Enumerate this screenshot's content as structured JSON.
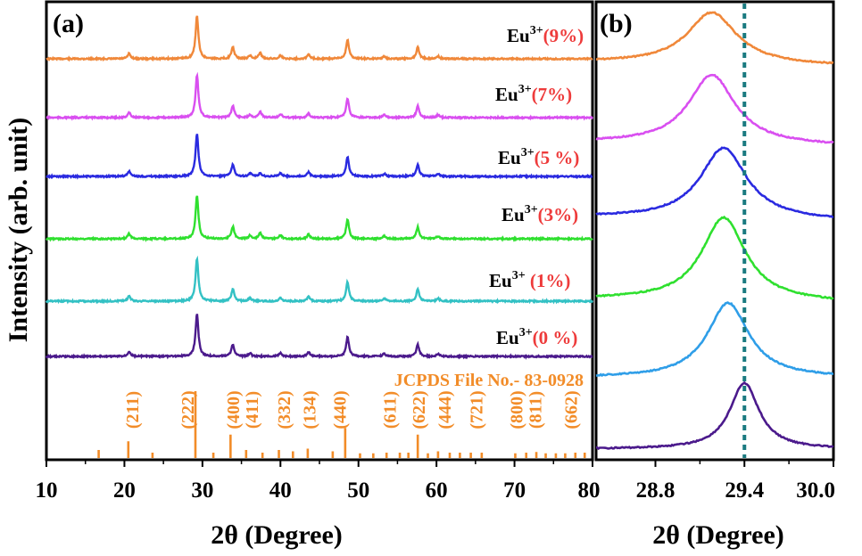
{
  "chart_data": [
    {
      "panel": "(a)",
      "type": "line",
      "xlabel": "2θ (Degree)",
      "ylabel": "Intensity (arb. unit)",
      "xlim": [
        10,
        80
      ],
      "xticks": [
        10,
        20,
        30,
        40,
        50,
        60,
        70,
        80
      ],
      "series": [
        {
          "name": "Eu3+(9%)",
          "doping": "Eu",
          "sup": "3+",
          "pct": "(9%)",
          "color": "#f0883a",
          "peaks": [
            [
              20.6,
              0.12
            ],
            [
              29.3,
              1.0
            ],
            [
              33.9,
              0.27
            ],
            [
              36.1,
              0.07
            ],
            [
              37.4,
              0.14
            ],
            [
              40.0,
              0.08
            ],
            [
              43.6,
              0.1
            ],
            [
              48.6,
              0.45
            ],
            [
              53.3,
              0.06
            ],
            [
              57.6,
              0.27
            ],
            [
              60.2,
              0.06
            ]
          ]
        },
        {
          "name": "Eu3+(7%)",
          "doping": "Eu",
          "sup": "3+",
          "pct": "(7%)",
          "color": "#d94ff0",
          "peaks": [
            [
              20.6,
              0.12
            ],
            [
              29.3,
              1.0
            ],
            [
              33.9,
              0.28
            ],
            [
              36.1,
              0.07
            ],
            [
              37.4,
              0.14
            ],
            [
              40.0,
              0.08
            ],
            [
              43.6,
              0.1
            ],
            [
              48.6,
              0.45
            ],
            [
              53.3,
              0.06
            ],
            [
              57.6,
              0.27
            ],
            [
              60.2,
              0.06
            ]
          ]
        },
        {
          "name": "Eu3+(5 %)",
          "doping": "Eu",
          "sup": "3+",
          "pct": "(5 %)",
          "color": "#2a2ae0",
          "peaks": [
            [
              20.6,
              0.12
            ],
            [
              29.3,
              1.0
            ],
            [
              33.9,
              0.28
            ],
            [
              36.1,
              0.07
            ],
            [
              37.4,
              0.07
            ],
            [
              40.0,
              0.08
            ],
            [
              43.6,
              0.1
            ],
            [
              48.6,
              0.45
            ],
            [
              53.3,
              0.06
            ],
            [
              57.6,
              0.27
            ],
            [
              60.2,
              0.06
            ]
          ]
        },
        {
          "name": "Eu3+(3%)",
          "doping": "Eu",
          "sup": "3+",
          "pct": "(3%)",
          "color": "#2fe02f",
          "peaks": [
            [
              20.6,
              0.12
            ],
            [
              29.3,
              1.0
            ],
            [
              33.9,
              0.28
            ],
            [
              36.1,
              0.07
            ],
            [
              37.4,
              0.14
            ],
            [
              40.0,
              0.08
            ],
            [
              43.6,
              0.1
            ],
            [
              48.6,
              0.45
            ],
            [
              53.3,
              0.06
            ],
            [
              57.6,
              0.27
            ],
            [
              60.2,
              0.06
            ]
          ]
        },
        {
          "name": "Eu3+ (1%)",
          "doping": "Eu",
          "sup": "3+",
          "pct": " (1%)",
          "color": "#33c1c4",
          "peaks": [
            [
              20.6,
              0.12
            ],
            [
              29.3,
              1.0
            ],
            [
              33.9,
              0.28
            ],
            [
              36.1,
              0.07
            ],
            [
              40.0,
              0.08
            ],
            [
              43.6,
              0.1
            ],
            [
              48.6,
              0.45
            ],
            [
              53.3,
              0.06
            ],
            [
              57.6,
              0.27
            ],
            [
              60.2,
              0.06
            ]
          ]
        },
        {
          "name": "Eu3+(0 %)",
          "doping": "Eu",
          "sup": "3+",
          "pct": "(0 %)",
          "color": "#4b1a8c",
          "peaks": [
            [
              20.6,
              0.12
            ],
            [
              29.3,
              1.0
            ],
            [
              33.9,
              0.28
            ],
            [
              36.1,
              0.07
            ],
            [
              40.0,
              0.08
            ],
            [
              43.6,
              0.1
            ],
            [
              48.6,
              0.45
            ],
            [
              53.3,
              0.06
            ],
            [
              57.6,
              0.27
            ],
            [
              60.2,
              0.06
            ]
          ]
        }
      ],
      "reference": {
        "title": "JCPDS File No.- 83-0928",
        "color": "#f28c28",
        "lines": [
          [
            16.7,
            0.12
          ],
          [
            20.5,
            0.25
          ],
          [
            23.6,
            0.08
          ],
          [
            29.1,
            1.0
          ],
          [
            31.4,
            0.08
          ],
          [
            33.6,
            0.35
          ],
          [
            35.6,
            0.12
          ],
          [
            37.7,
            0.08
          ],
          [
            39.8,
            0.12
          ],
          [
            41.6,
            0.1
          ],
          [
            43.5,
            0.14
          ],
          [
            46.7,
            0.1
          ],
          [
            48.3,
            0.45
          ],
          [
            50.2,
            0.07
          ],
          [
            51.9,
            0.07
          ],
          [
            53.6,
            0.08
          ],
          [
            55.3,
            0.08
          ],
          [
            56.4,
            0.08
          ],
          [
            57.6,
            0.35
          ],
          [
            58.9,
            0.07
          ],
          [
            60.2,
            0.1
          ],
          [
            61.7,
            0.08
          ],
          [
            63.0,
            0.08
          ],
          [
            64.4,
            0.08
          ],
          [
            65.8,
            0.08
          ],
          [
            70.1,
            0.07
          ],
          [
            71.5,
            0.08
          ],
          [
            72.8,
            0.09
          ],
          [
            74.0,
            0.07
          ],
          [
            75.3,
            0.07
          ],
          [
            76.5,
            0.07
          ],
          [
            77.8,
            0.08
          ],
          [
            79.0,
            0.08
          ]
        ],
        "hkl": [
          {
            "label": "(211)",
            "x": 21.0
          },
          {
            "label": "(222)",
            "x": 28.1
          },
          {
            "label": "(400)",
            "x": 33.9
          },
          {
            "label": "(411)",
            "x": 36.3
          },
          {
            "label": "(332)",
            "x": 40.4
          },
          {
            "label": "(134)",
            "x": 43.7
          },
          {
            "label": "(440)",
            "x": 47.6
          },
          {
            "label": "(611)",
            "x": 54.0
          },
          {
            "label": "(622)",
            "x": 57.7
          },
          {
            "label": "(444)",
            "x": 61.0
          },
          {
            "label": "(721)",
            "x": 65.1
          },
          {
            "label": "(800)",
            "x": 70.2
          },
          {
            "label": "(811)",
            "x": 72.6
          },
          {
            "label": "(662)",
            "x": 77.2
          }
        ]
      }
    },
    {
      "panel": "(b)",
      "type": "line",
      "xlabel": "2θ (Degree)",
      "xlim": [
        28.4,
        30.0
      ],
      "xticks": [
        28.8,
        29.4,
        30.0
      ],
      "reference_line": {
        "x": 29.4,
        "color": "#1a7a80",
        "style": "dotted"
      },
      "series": [
        {
          "name": "9%",
          "color": "#f0883a",
          "peak_x": 29.18,
          "width": 0.2
        },
        {
          "name": "7%",
          "color": "#d94ff0",
          "peak_x": 29.18,
          "width": 0.19
        },
        {
          "name": "5 %",
          "color": "#2a2ae0",
          "peak_x": 29.26,
          "width": 0.19
        },
        {
          "name": "3%",
          "color": "#2fe02f",
          "peak_x": 29.26,
          "width": 0.18
        },
        {
          "name": "1%",
          "color": "#2f9ee8",
          "peak_x": 29.29,
          "width": 0.17
        },
        {
          "name": "0 %",
          "color": "#4b1a8c",
          "peak_x": 29.4,
          "width": 0.12
        }
      ]
    }
  ]
}
